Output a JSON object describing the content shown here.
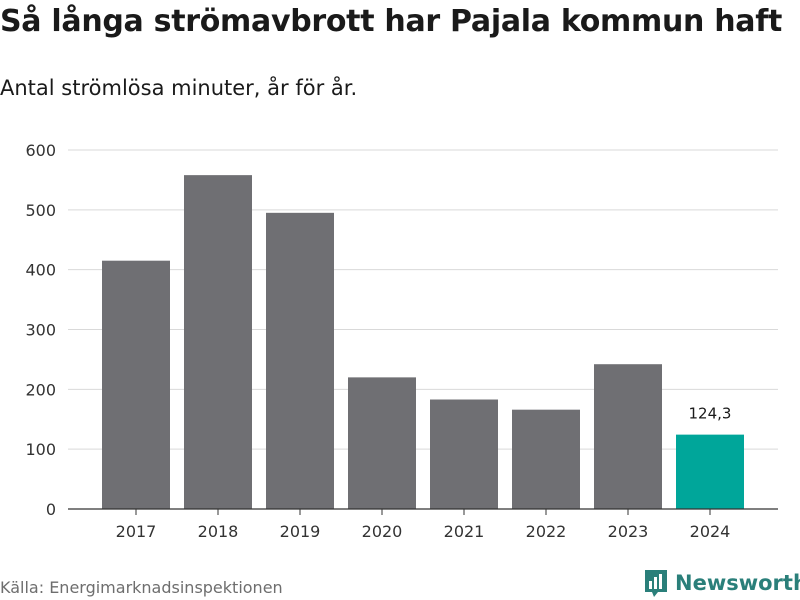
{
  "header": {
    "title": "Så långa strömavbrott har Pajala kommun haft",
    "subtitle": "Antal strömlösa minuter, år för år."
  },
  "footer": {
    "source": "Källa: Energimarknadsinspektionen",
    "brand": "Newsworthy"
  },
  "colors": {
    "bar": "#6f6f73",
    "highlight": "#00a69a",
    "grid": "#d9d9d9",
    "axis": "#333333",
    "brand": "#2a7f7a"
  },
  "chart_data": {
    "type": "bar",
    "title": "Så långa strömavbrott har Pajala kommun haft",
    "subtitle": "Antal strömlösa minuter, år för år.",
    "xlabel": "",
    "ylabel": "",
    "categories": [
      "2017",
      "2018",
      "2019",
      "2020",
      "2021",
      "2022",
      "2023",
      "2024"
    ],
    "values": [
      415,
      558,
      495,
      220,
      183,
      166,
      242,
      124.3
    ],
    "highlight_index": 7,
    "data_labels": [
      {
        "index": 7,
        "text": "124,3"
      }
    ],
    "ylim": [
      0,
      600
    ],
    "yticks": [
      0,
      100,
      200,
      300,
      400,
      500,
      600
    ],
    "grid": true,
    "legend": "none"
  }
}
